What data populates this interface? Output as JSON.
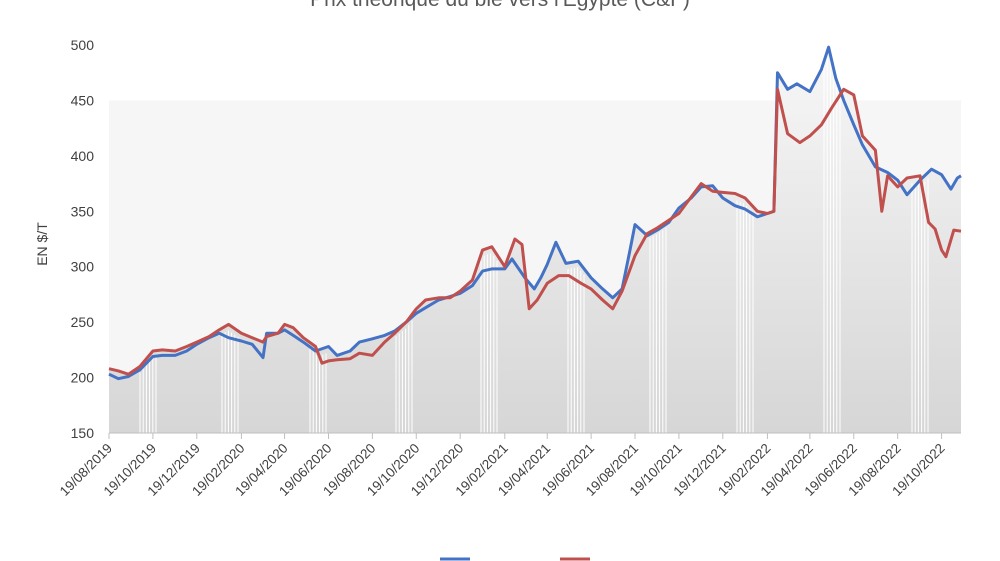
{
  "chart_data": {
    "type": "line",
    "title": "Prix théorique du blé vers l'Egypte (C&F)",
    "ylabel": "EN $/T",
    "xlabel": "",
    "ylim": [
      150,
      500
    ],
    "yticks": [
      150,
      200,
      250,
      300,
      350,
      400,
      450,
      500
    ],
    "xticks": [
      "19/08/2019",
      "19/10/2019",
      "19/12/2019",
      "19/02/2020",
      "19/04/2020",
      "19/06/2020",
      "19/08/2020",
      "19/10/2020",
      "19/12/2020",
      "19/02/2021",
      "19/04/2021",
      "19/06/2021",
      "19/08/2021",
      "19/10/2021",
      "19/12/2021",
      "19/02/2022",
      "19/04/2022",
      "19/06/2022",
      "19/08/2022",
      "19/10/2022"
    ],
    "grid": false,
    "background_area_color": "#d9d9d9",
    "series": [
      {
        "name": "",
        "color": "#4472c4",
        "points": [
          [
            "2019-08-19",
            203
          ],
          [
            "2019-09-01",
            199
          ],
          [
            "2019-09-15",
            201
          ],
          [
            "2019-10-01",
            207
          ],
          [
            "2019-10-19",
            219
          ],
          [
            "2019-11-01",
            220
          ],
          [
            "2019-11-19",
            220
          ],
          [
            "2019-12-05",
            224
          ],
          [
            "2019-12-19",
            230
          ],
          [
            "2020-01-05",
            236
          ],
          [
            "2020-01-19",
            240
          ],
          [
            "2020-02-01",
            236
          ],
          [
            "2020-02-19",
            233
          ],
          [
            "2020-03-05",
            230
          ],
          [
            "2020-03-20",
            218
          ],
          [
            "2020-03-25",
            240
          ],
          [
            "2020-04-10",
            240
          ],
          [
            "2020-04-19",
            243
          ],
          [
            "2020-05-01",
            238
          ],
          [
            "2020-05-15",
            232
          ],
          [
            "2020-06-01",
            224
          ],
          [
            "2020-06-19",
            228
          ],
          [
            "2020-07-01",
            220
          ],
          [
            "2020-07-19",
            224
          ],
          [
            "2020-08-01",
            232
          ],
          [
            "2020-08-19",
            235
          ],
          [
            "2020-09-05",
            238
          ],
          [
            "2020-09-19",
            242
          ],
          [
            "2020-10-05",
            250
          ],
          [
            "2020-10-19",
            258
          ],
          [
            "2020-11-01",
            263
          ],
          [
            "2020-11-19",
            270
          ],
          [
            "2020-12-05",
            273
          ],
          [
            "2020-12-19",
            276
          ],
          [
            "2021-01-05",
            283
          ],
          [
            "2021-01-19",
            296
          ],
          [
            "2021-02-01",
            298
          ],
          [
            "2021-02-19",
            298
          ],
          [
            "2021-03-01",
            307
          ],
          [
            "2021-03-19",
            290
          ],
          [
            "2021-04-01",
            280
          ],
          [
            "2021-04-10",
            290
          ],
          [
            "2021-04-19",
            302
          ],
          [
            "2021-05-01",
            322
          ],
          [
            "2021-05-15",
            303
          ],
          [
            "2021-06-01",
            305
          ],
          [
            "2021-06-19",
            290
          ],
          [
            "2021-07-05",
            280
          ],
          [
            "2021-07-19",
            272
          ],
          [
            "2021-08-01",
            280
          ],
          [
            "2021-08-12",
            315
          ],
          [
            "2021-08-19",
            338
          ],
          [
            "2021-09-05",
            328
          ],
          [
            "2021-09-19",
            333
          ],
          [
            "2021-10-05",
            340
          ],
          [
            "2021-10-19",
            353
          ],
          [
            "2021-11-05",
            362
          ],
          [
            "2021-11-19",
            372
          ],
          [
            "2021-12-05",
            373
          ],
          [
            "2021-12-19",
            362
          ],
          [
            "2022-01-05",
            355
          ],
          [
            "2022-01-19",
            352
          ],
          [
            "2022-02-05",
            345
          ],
          [
            "2022-02-19",
            348
          ],
          [
            "2022-02-28",
            350
          ],
          [
            "2022-03-05",
            475
          ],
          [
            "2022-03-19",
            460
          ],
          [
            "2022-04-01",
            465
          ],
          [
            "2022-04-19",
            458
          ],
          [
            "2022-05-05",
            478
          ],
          [
            "2022-05-15",
            498
          ],
          [
            "2022-05-25",
            470
          ],
          [
            "2022-06-05",
            450
          ],
          [
            "2022-06-19",
            428
          ],
          [
            "2022-07-01",
            410
          ],
          [
            "2022-07-19",
            390
          ],
          [
            "2022-08-05",
            385
          ],
          [
            "2022-08-19",
            378
          ],
          [
            "2022-09-01",
            365
          ],
          [
            "2022-09-19",
            378
          ],
          [
            "2022-10-05",
            388
          ],
          [
            "2022-10-19",
            383
          ],
          [
            "2022-11-01",
            370
          ],
          [
            "2022-11-10",
            380
          ],
          [
            "2022-11-15",
            382
          ]
        ]
      },
      {
        "name": "",
        "color": "#c0504d",
        "points": [
          [
            "2019-08-19",
            208
          ],
          [
            "2019-09-01",
            206
          ],
          [
            "2019-09-15",
            203
          ],
          [
            "2019-10-01",
            210
          ],
          [
            "2019-10-19",
            224
          ],
          [
            "2019-11-01",
            225
          ],
          [
            "2019-11-19",
            224
          ],
          [
            "2019-12-05",
            228
          ],
          [
            "2019-12-19",
            232
          ],
          [
            "2020-01-05",
            237
          ],
          [
            "2020-01-19",
            243
          ],
          [
            "2020-02-01",
            248
          ],
          [
            "2020-02-19",
            240
          ],
          [
            "2020-03-05",
            236
          ],
          [
            "2020-03-20",
            232
          ],
          [
            "2020-03-25",
            237
          ],
          [
            "2020-04-10",
            240
          ],
          [
            "2020-04-19",
            248
          ],
          [
            "2020-05-01",
            245
          ],
          [
            "2020-05-15",
            236
          ],
          [
            "2020-06-01",
            228
          ],
          [
            "2020-06-10",
            213
          ],
          [
            "2020-06-19",
            215
          ],
          [
            "2020-07-01",
            216
          ],
          [
            "2020-07-19",
            217
          ],
          [
            "2020-08-01",
            222
          ],
          [
            "2020-08-19",
            220
          ],
          [
            "2020-09-05",
            232
          ],
          [
            "2020-09-19",
            240
          ],
          [
            "2020-10-05",
            250
          ],
          [
            "2020-10-19",
            262
          ],
          [
            "2020-11-01",
            270
          ],
          [
            "2020-11-19",
            272
          ],
          [
            "2020-12-05",
            272
          ],
          [
            "2020-12-19",
            278
          ],
          [
            "2021-01-05",
            288
          ],
          [
            "2021-01-19",
            315
          ],
          [
            "2021-02-01",
            318
          ],
          [
            "2021-02-19",
            300
          ],
          [
            "2021-03-05",
            325
          ],
          [
            "2021-03-15",
            320
          ],
          [
            "2021-03-25",
            262
          ],
          [
            "2021-04-05",
            270
          ],
          [
            "2021-04-19",
            285
          ],
          [
            "2021-05-05",
            292
          ],
          [
            "2021-05-19",
            292
          ],
          [
            "2021-06-05",
            285
          ],
          [
            "2021-06-19",
            280
          ],
          [
            "2021-07-05",
            270
          ],
          [
            "2021-07-19",
            262
          ],
          [
            "2021-08-01",
            278
          ],
          [
            "2021-08-19",
            310
          ],
          [
            "2021-09-05",
            330
          ],
          [
            "2021-09-19",
            335
          ],
          [
            "2021-10-05",
            342
          ],
          [
            "2021-10-19",
            348
          ],
          [
            "2021-11-05",
            363
          ],
          [
            "2021-11-19",
            375
          ],
          [
            "2021-12-05",
            368
          ],
          [
            "2021-12-19",
            367
          ],
          [
            "2022-01-05",
            366
          ],
          [
            "2022-01-19",
            362
          ],
          [
            "2022-02-05",
            350
          ],
          [
            "2022-02-19",
            348
          ],
          [
            "2022-02-28",
            350
          ],
          [
            "2022-03-05",
            460
          ],
          [
            "2022-03-19",
            420
          ],
          [
            "2022-04-05",
            412
          ],
          [
            "2022-04-19",
            418
          ],
          [
            "2022-05-05",
            428
          ],
          [
            "2022-05-19",
            443
          ],
          [
            "2022-06-05",
            460
          ],
          [
            "2022-06-19",
            455
          ],
          [
            "2022-07-01",
            418
          ],
          [
            "2022-07-19",
            405
          ],
          [
            "2022-07-28",
            350
          ],
          [
            "2022-08-05",
            382
          ],
          [
            "2022-08-19",
            372
          ],
          [
            "2022-09-01",
            380
          ],
          [
            "2022-09-19",
            382
          ],
          [
            "2022-10-01",
            340
          ],
          [
            "2022-10-10",
            334
          ],
          [
            "2022-10-19",
            315
          ],
          [
            "2022-10-25",
            309
          ],
          [
            "2022-11-05",
            333
          ],
          [
            "2022-11-15",
            332
          ]
        ]
      }
    ],
    "legend": [
      "",
      ""
    ]
  }
}
